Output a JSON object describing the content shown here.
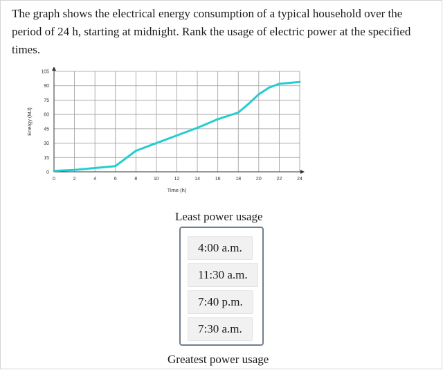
{
  "question": {
    "text": "The graph shows the electrical energy consumption of a typical household over the period of 24 h, starting at midnight. Rank the usage of electric power at the specified times."
  },
  "chart_data": {
    "type": "line",
    "xlabel": "Time (h)",
    "ylabel": "Energy (MJ)",
    "xlim": [
      0,
      24
    ],
    "ylim": [
      0,
      105
    ],
    "xticks": [
      0,
      2,
      4,
      6,
      8,
      10,
      12,
      14,
      16,
      18,
      20,
      22,
      24
    ],
    "yticks": [
      0,
      15,
      30,
      45,
      60,
      75,
      90,
      105
    ],
    "grid": true,
    "line_color": "#24cdd2",
    "series": [
      {
        "x": [
          0,
          2,
          4,
          6,
          8,
          10,
          12,
          14,
          16,
          18,
          19,
          20,
          21,
          22,
          23,
          24
        ],
        "y": [
          1,
          2,
          4,
          6,
          22,
          30,
          38,
          46,
          55,
          62,
          71,
          81,
          88,
          92,
          93,
          94
        ]
      }
    ]
  },
  "ranking": {
    "top_label": "Least power usage",
    "bottom_label": "Greatest power usage",
    "items": [
      "4:00 a.m.",
      "11:30 a.m.",
      "7:40 p.m.",
      "7:30 a.m."
    ]
  }
}
